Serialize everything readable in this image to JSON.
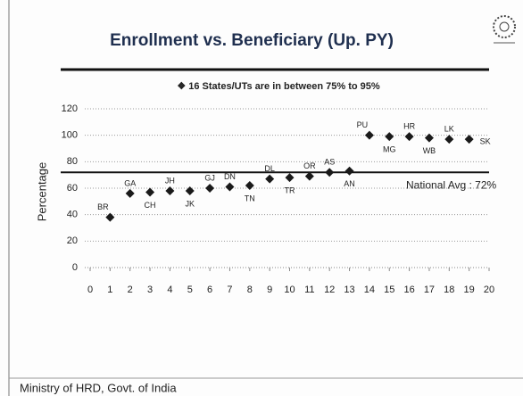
{
  "chart_data": {
    "type": "scatter",
    "title": "Enrollment vs. Beneficiary (Up. PY)",
    "annotation": "❖ 16 States/UTs are in between 75% to 95%",
    "ylabel": "Percentage",
    "x": [
      1,
      2,
      3,
      4,
      5,
      6,
      7,
      8,
      9,
      10,
      11,
      12,
      13,
      14,
      15,
      16,
      17,
      18,
      19
    ],
    "values": [
      38,
      56,
      57,
      58,
      58,
      60,
      61,
      62,
      67,
      68,
      69,
      72,
      73,
      100,
      99,
      99,
      98,
      97,
      97
    ],
    "point_labels": [
      "BR",
      "GA",
      "CH",
      "JH",
      "JK",
      "GJ",
      "DN",
      "TN",
      "DL",
      "TR",
      "OR",
      "AS",
      "AN",
      "PU",
      "MG",
      "HR",
      "WB",
      "LK",
      "SK"
    ],
    "color": "#1a1a1a",
    "reference_line": {
      "value": 72,
      "label": "National Avg : 72%"
    },
    "xlim": [
      0,
      20
    ],
    "xticks": [
      0,
      1,
      2,
      3,
      4,
      5,
      6,
      7,
      8,
      9,
      10,
      11,
      12,
      13,
      14,
      15,
      16,
      17,
      18,
      19,
      20
    ],
    "ylim": [
      0,
      120
    ],
    "yticks": [
      0,
      20,
      40,
      60,
      80,
      100,
      120
    ],
    "grid": true
  },
  "footer": "Ministry of HRD, Govt. of India"
}
